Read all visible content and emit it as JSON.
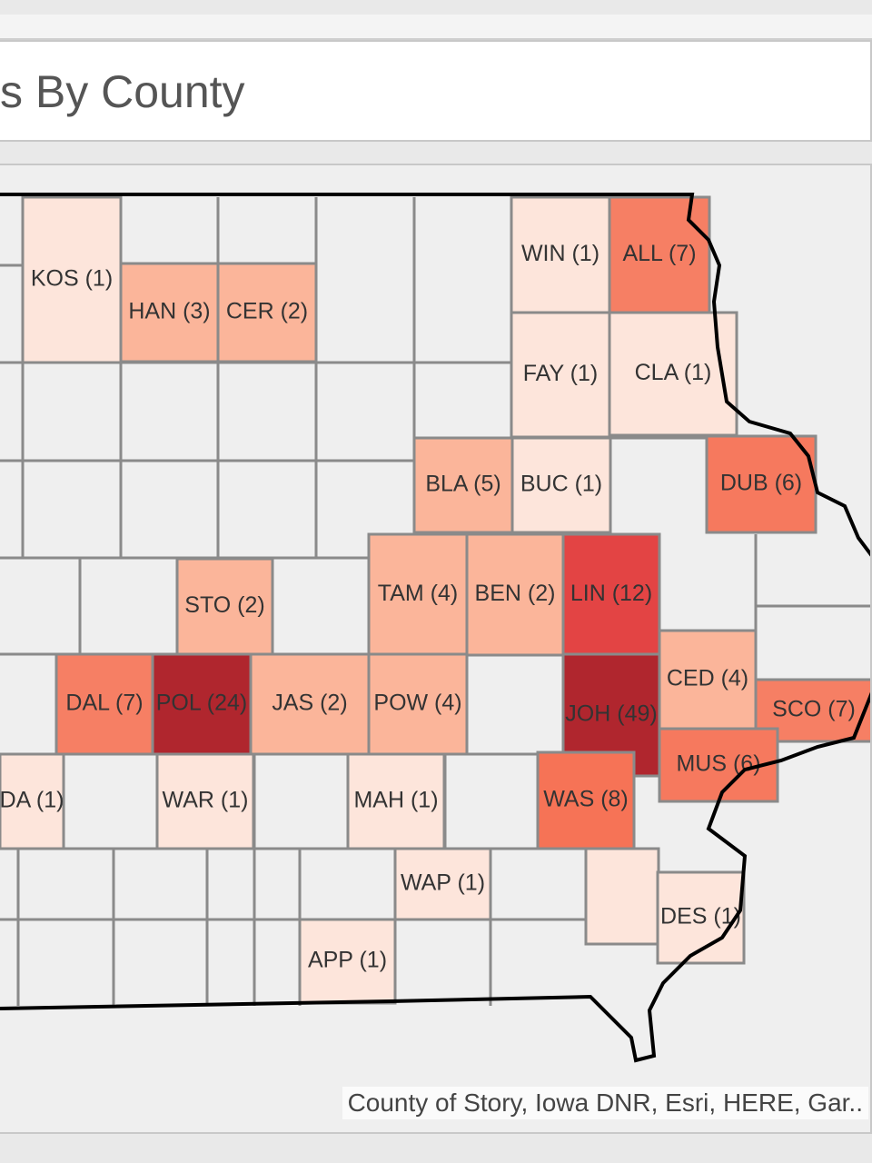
{
  "header": {
    "title": "s By County"
  },
  "map": {
    "counties": [
      {
        "label": "KOS (1)",
        "color": "#fde5db"
      },
      {
        "label": "HAN (3)",
        "color": "#fbb59a"
      },
      {
        "label": "CER (2)",
        "color": "#fbb59a"
      },
      {
        "label": "WIN (1)",
        "color": "#fde5db"
      },
      {
        "label": "ALL (7)",
        "color": "#f67f64"
      },
      {
        "label": "FAY (1)",
        "color": "#fde5db"
      },
      {
        "label": "CLA (1)",
        "color": "#fde5db"
      },
      {
        "label": "BLA (5)",
        "color": "#fbb59a"
      },
      {
        "label": "BUC (1)",
        "color": "#fde5db"
      },
      {
        "label": "DUB (6)",
        "color": "#f6795e"
      },
      {
        "label": "STO (2)",
        "color": "#fbb59a"
      },
      {
        "label": "TAM (4)",
        "color": "#fbb59a"
      },
      {
        "label": "BEN (2)",
        "color": "#fbb59a"
      },
      {
        "label": "LIN (12)",
        "color": "#e34444"
      },
      {
        "label": "DAL (7)",
        "color": "#f67f64"
      },
      {
        "label": "POL (24)",
        "color": "#b0262e"
      },
      {
        "label": "JAS (2)",
        "color": "#fbb59a"
      },
      {
        "label": "POW (4)",
        "color": "#fbb59a"
      },
      {
        "label": "JOH (49)",
        "color": "#b0262e"
      },
      {
        "label": "CED (4)",
        "color": "#fbb59a"
      },
      {
        "label": "SCO (7)",
        "color": "#f67f64"
      },
      {
        "label": "MUS (6)",
        "color": "#f6795e"
      },
      {
        "label": "DA (1)",
        "color": "#fde5db"
      },
      {
        "label": "WAR (1)",
        "color": "#fde5db"
      },
      {
        "label": "MAH (1)",
        "color": "#fde5db"
      },
      {
        "label": "WAS (8)",
        "color": "#f67356"
      },
      {
        "label": "WAP (1)",
        "color": "#fde5db"
      },
      {
        "label": "DES (1)",
        "color": "#fde5db"
      },
      {
        "label": "APP (1)",
        "color": "#fde5db"
      }
    ],
    "attribution": "County of Story, Iowa DNR, Esri, HERE, Gar.."
  }
}
